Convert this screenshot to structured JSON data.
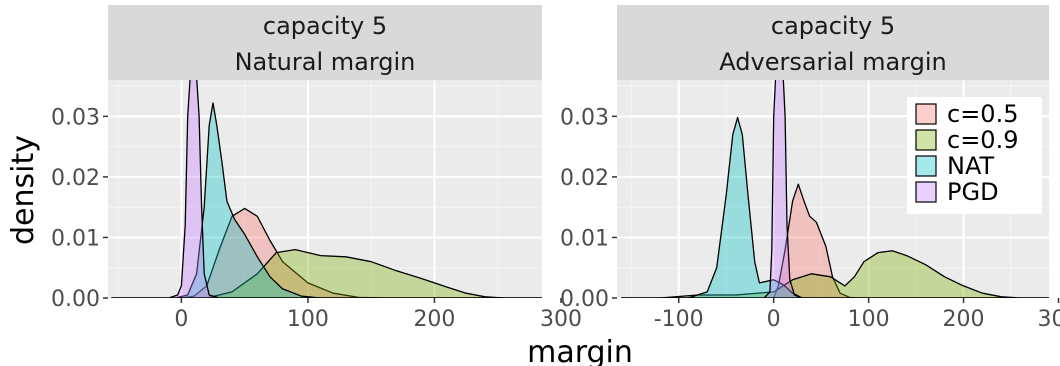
{
  "chart_data": {
    "type": "area",
    "xlabel": "margin",
    "ylabel": "density",
    "ylim": [
      0,
      0.036
    ],
    "y_ticks": [
      "0.00",
      "0.01",
      "0.02",
      "0.03"
    ],
    "y_tick_values": [
      0,
      0.01,
      0.02,
      0.03
    ],
    "grid": true,
    "legend_position": "top-right",
    "legend": [
      {
        "name": "c=0.5",
        "color": "#F8766D"
      },
      {
        "name": "c=0.9",
        "color": "#7CAE00"
      },
      {
        "name": "NAT",
        "color": "#00BFC4"
      },
      {
        "name": "PGD",
        "color": "#C77CFF"
      }
    ],
    "panels": [
      {
        "strip_line1": "capacity  5",
        "strip_line2": "Natural margin",
        "xlim": [
          -58,
          285
        ],
        "x_ticks": [
          "0",
          "100",
          "200",
          "300"
        ],
        "x_tick_values": [
          0,
          100,
          200,
          300
        ],
        "series": [
          {
            "name": "c=0.5",
            "color": "#F8766D",
            "points": [
              [
                -55,
                0
              ],
              [
                0,
                0
              ],
              [
                10,
                0.0003
              ],
              [
                20,
                0.002
              ],
              [
                30,
                0.008
              ],
              [
                40,
                0.0135
              ],
              [
                50,
                0.0148
              ],
              [
                60,
                0.0135
              ],
              [
                70,
                0.0095
              ],
              [
                80,
                0.006
              ],
              [
                100,
                0.0025
              ],
              [
                120,
                0.0008
              ],
              [
                140,
                0.0001
              ],
              [
                160,
                0
              ],
              [
                285,
                0
              ]
            ]
          },
          {
            "name": "c=0.9",
            "color": "#7CAE00",
            "points": [
              [
                -55,
                0
              ],
              [
                20,
                0
              ],
              [
                40,
                0.001
              ],
              [
                60,
                0.004
              ],
              [
                75,
                0.0075
              ],
              [
                90,
                0.008
              ],
              [
                110,
                0.007
              ],
              [
                130,
                0.0068
              ],
              [
                150,
                0.006
              ],
              [
                170,
                0.0045
              ],
              [
                190,
                0.0032
              ],
              [
                210,
                0.0018
              ],
              [
                225,
                0.0008
              ],
              [
                240,
                0.0002
              ],
              [
                255,
                0
              ],
              [
                285,
                0
              ]
            ]
          },
          {
            "name": "NAT",
            "color": "#00BFC4",
            "points": [
              [
                -55,
                0
              ],
              [
                -5,
                0
              ],
              [
                5,
                0.0005
              ],
              [
                12,
                0.004
              ],
              [
                18,
                0.015
              ],
              [
                22,
                0.0285
              ],
              [
                25,
                0.0322
              ],
              [
                28,
                0.0285
              ],
              [
                32,
                0.0225
              ],
              [
                36,
                0.016
              ],
              [
                42,
                0.013
              ],
              [
                50,
                0.0105
              ],
              [
                60,
                0.0068
              ],
              [
                70,
                0.0035
              ],
              [
                80,
                0.0015
              ],
              [
                95,
                0.0003
              ],
              [
                110,
                0
              ],
              [
                285,
                0
              ]
            ]
          },
          {
            "name": "PGD",
            "color": "#C77CFF",
            "points": [
              [
                -55,
                0
              ],
              [
                -10,
                0
              ],
              [
                -3,
                0.0005
              ],
              [
                0,
                0.002
              ],
              [
                3,
                0.012
              ],
              [
                5,
                0.03
              ],
              [
                7,
                0.0365
              ],
              [
                12,
                0.0365
              ],
              [
                14,
                0.03
              ],
              [
                16,
                0.015
              ],
              [
                18,
                0.004
              ],
              [
                22,
                0.0005
              ],
              [
                30,
                0
              ],
              [
                285,
                0
              ]
            ]
          }
        ]
      },
      {
        "strip_line1": "capacity  5",
        "strip_line2": "Adversarial margin",
        "xlim": [
          -165,
          290
        ],
        "x_ticks": [
          "-100",
          "0",
          "100",
          "200",
          "300"
        ],
        "x_tick_values": [
          -100,
          0,
          100,
          200,
          300
        ],
        "series": [
          {
            "name": "c=0.5",
            "color": "#F8766D",
            "points": [
              [
                -160,
                0
              ],
              [
                0,
                0
              ],
              [
                5,
                0.002
              ],
              [
                12,
                0.008
              ],
              [
                20,
                0.016
              ],
              [
                26,
                0.0188
              ],
              [
                32,
                0.016
              ],
              [
                38,
                0.0135
              ],
              [
                45,
                0.0125
              ],
              [
                55,
                0.0085
              ],
              [
                62,
                0.0035
              ],
              [
                70,
                0.0008
              ],
              [
                80,
                0.0001
              ],
              [
                90,
                0
              ],
              [
                290,
                0
              ]
            ]
          },
          {
            "name": "c=0.9",
            "color": "#7CAE00",
            "points": [
              [
                -160,
                0
              ],
              [
                -120,
                0
              ],
              [
                -80,
                0.0005
              ],
              [
                -40,
                0.0005
              ],
              [
                0,
                0.001
              ],
              [
                20,
                0.003
              ],
              [
                40,
                0.004
              ],
              [
                60,
                0.0035
              ],
              [
                75,
                0.002
              ],
              [
                85,
                0.0035
              ],
              [
                95,
                0.006
              ],
              [
                110,
                0.0075
              ],
              [
                125,
                0.0078
              ],
              [
                140,
                0.007
              ],
              [
                160,
                0.0055
              ],
              [
                180,
                0.0035
              ],
              [
                200,
                0.002
              ],
              [
                220,
                0.0008
              ],
              [
                240,
                0.0002
              ],
              [
                260,
                0
              ],
              [
                290,
                0
              ]
            ]
          },
          {
            "name": "NAT",
            "color": "#00BFC4",
            "points": [
              [
                -160,
                0
              ],
              [
                -90,
                0
              ],
              [
                -70,
                0.001
              ],
              [
                -60,
                0.005
              ],
              [
                -50,
                0.017
              ],
              [
                -43,
                0.027
              ],
              [
                -38,
                0.0298
              ],
              [
                -33,
                0.027
              ],
              [
                -27,
                0.017
              ],
              [
                -20,
                0.006
              ],
              [
                -15,
                0.0025
              ],
              [
                0,
                0.003
              ],
              [
                10,
                0.0022
              ],
              [
                20,
                0.0008
              ],
              [
                30,
                0
              ],
              [
                290,
                0
              ]
            ]
          },
          {
            "name": "PGD",
            "color": "#C77CFF",
            "points": [
              [
                -160,
                0
              ],
              [
                -10,
                0
              ],
              [
                -4,
                0.001
              ],
              [
                -2,
                0.008
              ],
              [
                0,
                0.03
              ],
              [
                2,
                0.0365
              ],
              [
                10,
                0.0365
              ],
              [
                12,
                0.03
              ],
              [
                14,
                0.012
              ],
              [
                17,
                0.003
              ],
              [
                22,
                0.0005
              ],
              [
                30,
                0
              ],
              [
                290,
                0
              ]
            ]
          }
        ]
      }
    ]
  }
}
